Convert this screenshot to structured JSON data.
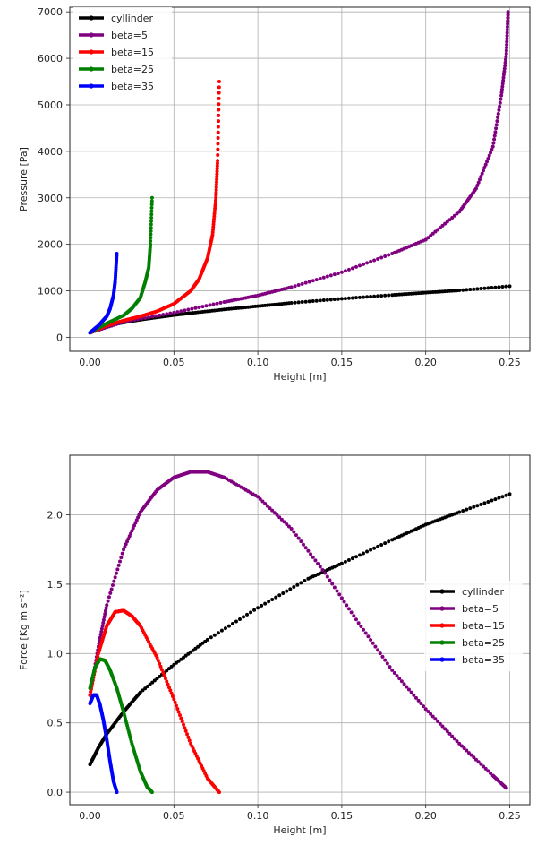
{
  "chart_data": [
    {
      "type": "scatter",
      "title": "",
      "xlabel": "Height [m]",
      "ylabel": "Pressure [Pa]",
      "xlim": [
        -0.012,
        0.262
      ],
      "ylim": [
        -300,
        7100
      ],
      "xticks": [
        "0.00",
        "0.05",
        "0.10",
        "0.15",
        "0.20",
        "0.25"
      ],
      "yticks": [
        "0",
        "1000",
        "2000",
        "3000",
        "4000",
        "5000",
        "6000",
        "7000"
      ],
      "grid": true,
      "legend_position": "top-left",
      "series": [
        {
          "name": "cyllinder",
          "color": "#000000",
          "x": [
            0.0,
            0.01,
            0.02,
            0.03,
            0.04,
            0.05,
            0.06,
            0.08,
            0.1,
            0.12,
            0.15,
            0.18,
            0.2,
            0.22,
            0.25
          ],
          "y": [
            100,
            250,
            320,
            380,
            430,
            480,
            520,
            600,
            670,
            740,
            830,
            910,
            960,
            1010,
            1100
          ]
        },
        {
          "name": "beta=5",
          "color": "#800080",
          "x": [
            0.0,
            0.02,
            0.05,
            0.08,
            0.1,
            0.12,
            0.15,
            0.18,
            0.2,
            0.22,
            0.23,
            0.24,
            0.245,
            0.248,
            0.249
          ],
          "y": [
            100,
            330,
            530,
            760,
            900,
            1080,
            1400,
            1800,
            2100,
            2700,
            3200,
            4100,
            5200,
            6100,
            7000
          ]
        },
        {
          "name": "beta=15",
          "color": "#ff0000",
          "x": [
            0.0,
            0.01,
            0.02,
            0.03,
            0.04,
            0.05,
            0.06,
            0.065,
            0.07,
            0.073,
            0.075,
            0.076,
            0.077
          ],
          "y": [
            100,
            250,
            360,
            450,
            560,
            720,
            1000,
            1250,
            1700,
            2200,
            3000,
            3800,
            5500
          ]
        },
        {
          "name": "beta=25",
          "color": "#008000",
          "x": [
            0.0,
            0.01,
            0.02,
            0.025,
            0.03,
            0.033,
            0.035,
            0.036,
            0.037
          ],
          "y": [
            100,
            300,
            470,
            620,
            850,
            1200,
            1500,
            2000,
            3000
          ]
        },
        {
          "name": "beta=35",
          "color": "#0000ff",
          "x": [
            0.0,
            0.005,
            0.01,
            0.012,
            0.014,
            0.015,
            0.016
          ],
          "y": [
            100,
            250,
            450,
            620,
            900,
            1200,
            1800
          ]
        }
      ]
    },
    {
      "type": "scatter",
      "title": "",
      "xlabel": "Height [m]",
      "ylabel": "Force [Kg m s⁻²]",
      "xlim": [
        -0.012,
        0.262
      ],
      "ylim": [
        -0.09,
        2.43
      ],
      "xticks": [
        "0.00",
        "0.05",
        "0.10",
        "0.15",
        "0.20",
        "0.25"
      ],
      "yticks": [
        "0.0",
        "0.5",
        "1.0",
        "1.5",
        "2.0"
      ],
      "grid": true,
      "legend_position": "center-right",
      "series": [
        {
          "name": "cyllinder",
          "color": "#000000",
          "x": [
            0.0,
            0.005,
            0.01,
            0.02,
            0.03,
            0.05,
            0.07,
            0.1,
            0.13,
            0.15,
            0.18,
            0.2,
            0.22,
            0.25
          ],
          "y": [
            0.2,
            0.32,
            0.42,
            0.58,
            0.72,
            0.92,
            1.1,
            1.33,
            1.54,
            1.65,
            1.82,
            1.93,
            2.02,
            2.15
          ]
        },
        {
          "name": "beta=5",
          "color": "#800080",
          "x": [
            0.0,
            0.005,
            0.01,
            0.02,
            0.03,
            0.04,
            0.05,
            0.06,
            0.07,
            0.08,
            0.1,
            0.12,
            0.14,
            0.16,
            0.18,
            0.2,
            0.22,
            0.24,
            0.248
          ],
          "y": [
            0.7,
            1.05,
            1.35,
            1.75,
            2.02,
            2.18,
            2.27,
            2.31,
            2.31,
            2.27,
            2.13,
            1.9,
            1.58,
            1.22,
            0.88,
            0.6,
            0.35,
            0.12,
            0.03
          ]
        },
        {
          "name": "beta=15",
          "color": "#ff0000",
          "x": [
            0.0,
            0.005,
            0.01,
            0.015,
            0.02,
            0.025,
            0.03,
            0.04,
            0.05,
            0.06,
            0.07,
            0.077
          ],
          "y": [
            0.7,
            1.0,
            1.2,
            1.3,
            1.31,
            1.27,
            1.2,
            0.97,
            0.67,
            0.35,
            0.1,
            0.0
          ]
        },
        {
          "name": "beta=25",
          "color": "#008000",
          "x": [
            0.0,
            0.003,
            0.006,
            0.009,
            0.012,
            0.016,
            0.02,
            0.025,
            0.03,
            0.034,
            0.037
          ],
          "y": [
            0.75,
            0.9,
            0.96,
            0.95,
            0.88,
            0.75,
            0.58,
            0.35,
            0.15,
            0.04,
            0.0
          ]
        },
        {
          "name": "beta=35",
          "color": "#0000ff",
          "x": [
            0.0,
            0.002,
            0.004,
            0.006,
            0.008,
            0.01,
            0.012,
            0.014,
            0.016
          ],
          "y": [
            0.64,
            0.7,
            0.7,
            0.63,
            0.52,
            0.38,
            0.22,
            0.08,
            0.0
          ]
        }
      ]
    }
  ]
}
